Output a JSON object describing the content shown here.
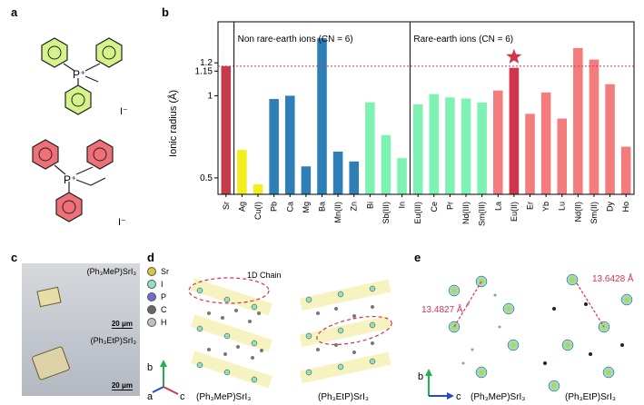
{
  "panels": {
    "a": "a",
    "b": "b",
    "c": "c",
    "d": "d",
    "e": "e"
  },
  "panel_a": {
    "top": {
      "cation": "P⁺",
      "anion": "I⁻",
      "color": "#d6f28a"
    },
    "bottom": {
      "cation": "P⁺",
      "anion": "I⁻",
      "color": "#f0707a"
    }
  },
  "chart_data": {
    "type": "bar",
    "ylabel": "Ionic radius (Å)",
    "ylim": [
      0.4,
      1.45
    ],
    "yticks": [
      {
        "value": 0.5,
        "label": "0.5"
      },
      {
        "value": 1.0,
        "label": "1"
      },
      {
        "value": 1.15,
        "label": "1.15"
      },
      {
        "value": 1.2,
        "label": "1.2"
      }
    ],
    "reference_line": 1.18,
    "annotations": {
      "non_rare_earth": "Non rare-earth ions (CN = 6)",
      "rare_earth": "Rare-earth ions (CN = 6)"
    },
    "bars": [
      {
        "label": "Sr",
        "value": 1.18,
        "color": "#c43b4d"
      },
      {
        "label": "Ag",
        "value": 0.67,
        "color": "#f2ee1c"
      },
      {
        "label": "Cu(I)",
        "value": 0.46,
        "color": "#f2ee1c"
      },
      {
        "label": "Pb",
        "value": 0.98,
        "color": "#2e7fb8"
      },
      {
        "label": "Ca",
        "value": 1.0,
        "color": "#2e7fb8"
      },
      {
        "label": "Mg",
        "value": 0.57,
        "color": "#2e7fb8"
      },
      {
        "label": "Ba",
        "value": 1.35,
        "color": "#2e7fb8"
      },
      {
        "label": "Mn(II)",
        "value": 0.66,
        "color": "#2e7fb8"
      },
      {
        "label": "Zn",
        "value": 0.6,
        "color": "#2e7fb8"
      },
      {
        "label": "Bi",
        "value": 0.96,
        "color": "#7ef2b2"
      },
      {
        "label": "Sb(III)",
        "value": 0.76,
        "color": "#7ef2b2"
      },
      {
        "label": "In",
        "value": 0.62,
        "color": "#7ef2b2"
      },
      {
        "label": "Eu(III)",
        "value": 0.947,
        "color": "#7ef2b2"
      },
      {
        "label": "Ce",
        "value": 1.01,
        "color": "#7ef2b2"
      },
      {
        "label": "Pr",
        "value": 0.99,
        "color": "#7ef2b2"
      },
      {
        "label": "Nd(III)",
        "value": 0.983,
        "color": "#7ef2b2"
      },
      {
        "label": "Sm(III)",
        "value": 0.958,
        "color": "#7ef2b2"
      },
      {
        "label": "La",
        "value": 1.032,
        "color": "#f47c7c"
      },
      {
        "label": "Eu(II)",
        "value": 1.17,
        "color": "#d2344d"
      },
      {
        "label": "Er",
        "value": 0.89,
        "color": "#f47c7c"
      },
      {
        "label": "Yb",
        "value": 1.02,
        "color": "#f47c7c"
      },
      {
        "label": "Lu",
        "value": 0.861,
        "color": "#f47c7c"
      },
      {
        "label": "Nd(II)",
        "value": 1.29,
        "color": "#f47c7c"
      },
      {
        "label": "Sm(II)",
        "value": 1.22,
        "color": "#f47c7c"
      },
      {
        "label": "Dy",
        "value": 1.07,
        "color": "#f47c7c"
      },
      {
        "label": "Ho",
        "value": 0.69,
        "color": "#f47c7c"
      }
    ],
    "star_on": "Eu(II)",
    "star_color": "#d2344d"
  },
  "panel_c": {
    "top_label": "(Ph₃MeP)SrI₃",
    "bottom_label": "(Ph₃EtP)SrI₃",
    "scale_top": "20 μm",
    "scale_bottom": "20 μm"
  },
  "panel_d": {
    "legend": [
      {
        "label": "Sr",
        "color": "#d4c640"
      },
      {
        "label": "I",
        "color": "#8fe0c4"
      },
      {
        "label": "P",
        "color": "#6e6fd0"
      },
      {
        "label": "C",
        "color": "#666666"
      },
      {
        "label": "H",
        "color": "#c0c0c0"
      }
    ],
    "chain_label": "1D Chain",
    "axes": {
      "b": "b",
      "a": "a",
      "c": "c"
    },
    "left_caption": "(Ph₃MeP)SrI₃",
    "right_caption": "(Ph₃EtP)SrI₃"
  },
  "panel_e": {
    "left_distance": "13.4827 Å",
    "right_distance": "13.6428 Å",
    "axes": {
      "b": "b",
      "c": "c"
    },
    "left_caption": "(Ph₃MeP)SrI₃",
    "right_caption": "(Ph₃EtP)SrI₃"
  }
}
